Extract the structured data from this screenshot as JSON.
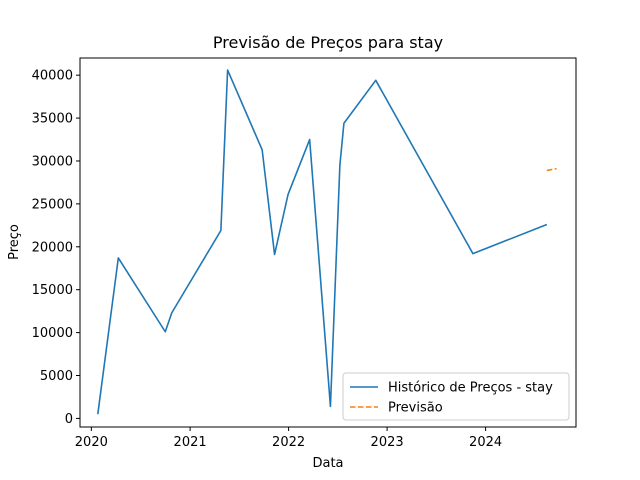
{
  "chart_data": {
    "type": "line",
    "title": "Previsão de Preços para stay",
    "xlabel": "Data",
    "ylabel": "Preço",
    "xlim": [
      "2019-11-20",
      "2024-12-01"
    ],
    "ylim": [
      -1000,
      42000
    ],
    "x_ticks": [
      {
        "label": "2020",
        "date": "2020-01-01"
      },
      {
        "label": "2021",
        "date": "2021-01-01"
      },
      {
        "label": "2022",
        "date": "2022-01-01"
      },
      {
        "label": "2023",
        "date": "2023-01-01"
      },
      {
        "label": "2024",
        "date": "2024-01-01"
      }
    ],
    "y_ticks": [
      0,
      5000,
      10000,
      15000,
      20000,
      25000,
      30000,
      35000,
      40000
    ],
    "grid": false,
    "legend_position": "lower-right",
    "series": [
      {
        "name": "Histórico de Preços - stay",
        "color": "#1f77b4",
        "style": "solid",
        "points": [
          {
            "x": "2020-01-25",
            "y": 500
          },
          {
            "x": "2020-04-10",
            "y": 18700
          },
          {
            "x": "2020-10-01",
            "y": 10100
          },
          {
            "x": "2020-10-25",
            "y": 12300
          },
          {
            "x": "2021-04-25",
            "y": 21900
          },
          {
            "x": "2021-05-20",
            "y": 40600
          },
          {
            "x": "2021-09-25",
            "y": 31300
          },
          {
            "x": "2021-11-10",
            "y": 19100
          },
          {
            "x": "2021-12-30",
            "y": 26100
          },
          {
            "x": "2022-03-20",
            "y": 32500
          },
          {
            "x": "2022-06-05",
            "y": 1400
          },
          {
            "x": "2022-07-10",
            "y": 29500
          },
          {
            "x": "2022-07-25",
            "y": 34400
          },
          {
            "x": "2022-11-20",
            "y": 39400
          },
          {
            "x": "2023-11-15",
            "y": 19200
          },
          {
            "x": "2024-08-15",
            "y": 22600
          }
        ]
      },
      {
        "name": "Previsão",
        "color": "#ff7f0e",
        "style": "dashed",
        "points": [
          {
            "x": "2024-08-15",
            "y": 28900
          },
          {
            "x": "2024-09-20",
            "y": 29100
          }
        ]
      }
    ]
  }
}
